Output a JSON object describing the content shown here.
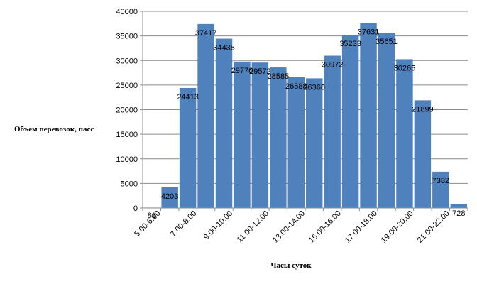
{
  "chart_data": {
    "type": "bar",
    "title": "",
    "xlabel": "Часы суток",
    "ylabel": "Объем перевозок, пасс",
    "ylim": [
      0,
      40000
    ],
    "yticks": [
      0,
      5000,
      10000,
      15000,
      20000,
      25000,
      30000,
      35000,
      40000
    ],
    "grid": true,
    "legend": "none",
    "bar_color": "#4f81bd",
    "categories": [
      "5.00-6.00",
      "6.00-7.00",
      "7.00-8.00",
      "8.00-9.00",
      "9.00-10.00",
      "10.00-11.00",
      "11.00-12.00",
      "12.00-13.00",
      "13.00-14.00",
      "14.00-15.00",
      "15.00-16.00",
      "16.00-17.00",
      "17.00-18.00",
      "18.00-19.00",
      "19.00-20.00",
      "20.00-21.00",
      "21.00-22.00",
      "22.00-23.00"
    ],
    "shown_tick_labels": [
      "5.00-6.00",
      "7.00-8.00",
      "9.00-10.00",
      "11.00-12.00",
      "13.00-14.00",
      "15.00-16.00",
      "17.00-18.00",
      "19.00-20.00",
      "21.00-22.00"
    ],
    "values": [
      81,
      4203,
      24413,
      37417,
      34438,
      29776,
      29572,
      28585,
      26588,
      26368,
      30972,
      35233,
      37631,
      35651,
      30265,
      21899,
      7382,
      728
    ]
  }
}
